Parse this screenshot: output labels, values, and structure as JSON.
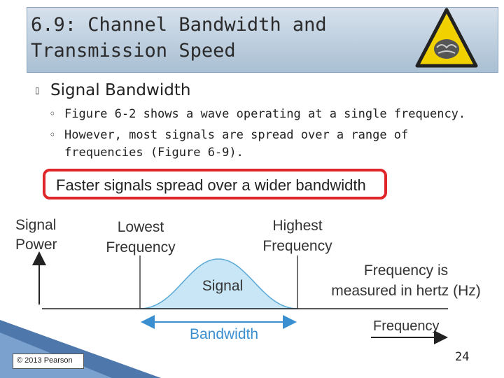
{
  "header": {
    "title_lines": [
      "6.9: Channel Bandwidth and",
      "Transmission Speed"
    ]
  },
  "bullets": [
    {
      "text": "Signal Bandwidth",
      "sub": [
        "Figure 6-2 shows a wave operating at a single frequency.",
        "However, most signals are spread over a range of",
        "frequencies (Figure 6-9)."
      ]
    }
  ],
  "figure": {
    "banner": "Faster signals spread over a wider bandwidth",
    "y_axis_lines": [
      "Signal",
      "Power"
    ],
    "lowest_lines": [
      "Lowest",
      "Frequency"
    ],
    "highest_lines": [
      "Highest",
      "Frequency"
    ],
    "curve_label": "Signal",
    "note_lines": [
      "Frequency is",
      "measured in hertz (Hz)"
    ],
    "bandwidth_label": "Bandwidth",
    "x_axis_label": "Frequency"
  },
  "footer": {
    "copyright": "© 2013 Pearson",
    "page_number": "24"
  }
}
